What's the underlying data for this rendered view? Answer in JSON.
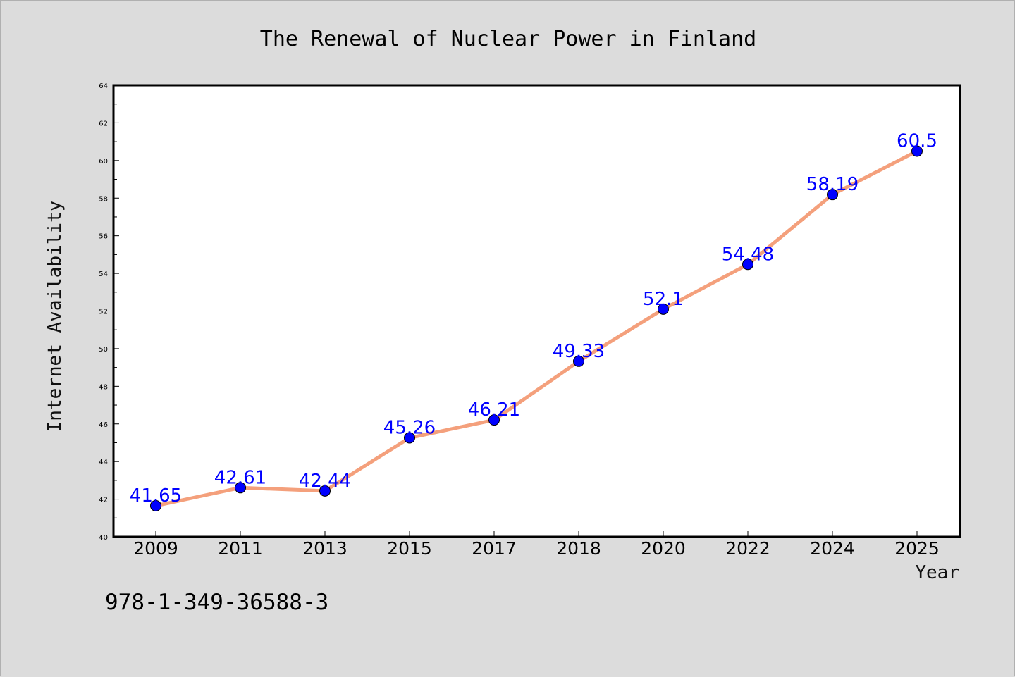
{
  "colors": {
    "background": "#dcdcdc",
    "plot_background": "#ffffff",
    "line": "#f4a07c",
    "marker": "#0000ff",
    "data_label": "#0000ff"
  },
  "chart_data": {
    "type": "line",
    "title": "The Renewal of Nuclear Power in Finland",
    "xlabel": "Year",
    "ylabel": "Internet Availability",
    "categories": [
      "2009",
      "2011",
      "2013",
      "2015",
      "2017",
      "2018",
      "2020",
      "2022",
      "2024",
      "2025"
    ],
    "series": [
      {
        "values": [
          41.65,
          42.61,
          42.44,
          45.26,
          46.21,
          49.33,
          52.1,
          54.48,
          58.19,
          60.5
        ],
        "color": "#f4a07c",
        "marker_color": "#0000ff"
      }
    ],
    "data_labels": [
      "41.65",
      "42.61",
      "42.44",
      "45.26",
      "46.21",
      "49.33",
      "52.1",
      "54.48",
      "58.19",
      "60.5"
    ],
    "ylim": [
      40,
      64
    ],
    "yticks": [
      "40",
      "42",
      "44",
      "46",
      "48",
      "50",
      "52",
      "54",
      "56",
      "58",
      "60",
      "62",
      "64"
    ],
    "grid": false,
    "legend": "none"
  },
  "footer": {
    "isbn": "978-1-349-36588-3"
  }
}
